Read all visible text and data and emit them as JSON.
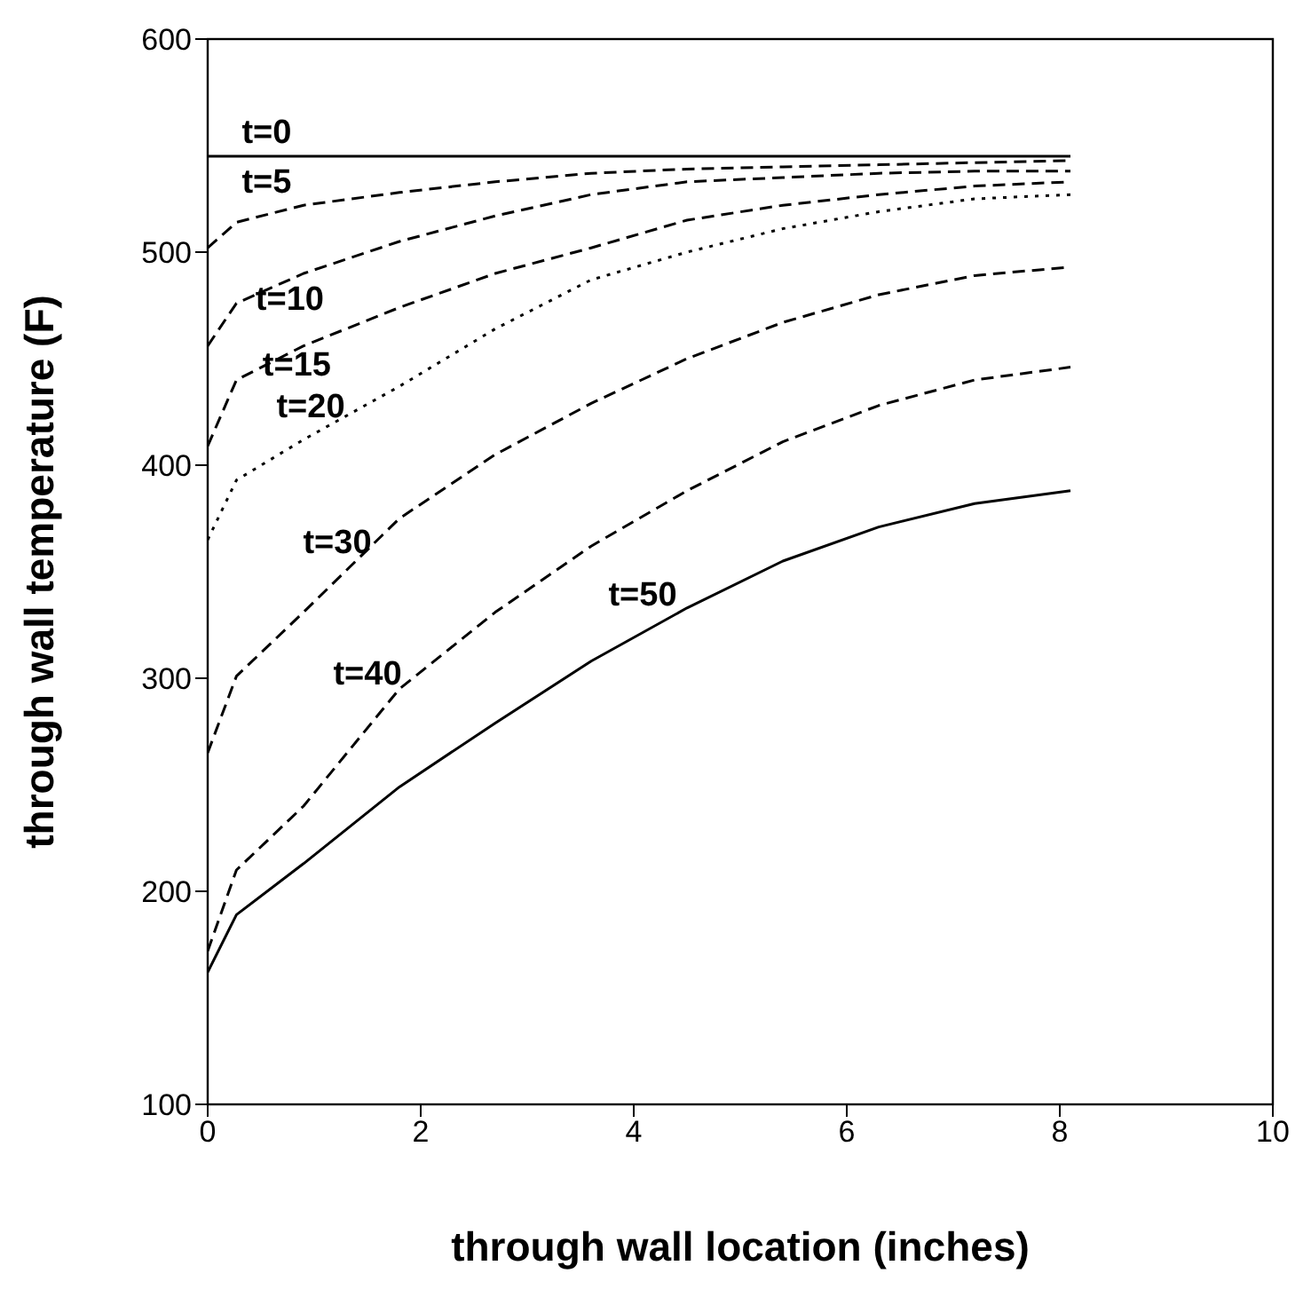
{
  "chart_data": {
    "type": "line",
    "xlabel": "through wall location (inches)",
    "ylabel": "through wall temperature (F)",
    "x": [
      0,
      0.27,
      0.9,
      1.8,
      2.7,
      3.6,
      4.5,
      5.4,
      6.3,
      7.2,
      8.1
    ],
    "xlim": [
      0,
      10
    ],
    "xticks": [
      0,
      2,
      4,
      6,
      8,
      10
    ],
    "ylim": [
      100,
      600
    ],
    "yticks": [
      100,
      200,
      300,
      400,
      500,
      600
    ],
    "grid": false,
    "marker": "none",
    "series": [
      {
        "name": "t=0",
        "color": "#000000",
        "line_style": "solid",
        "values": [
          545,
          545,
          545,
          545,
          545,
          545,
          545,
          545,
          545,
          545,
          545
        ]
      },
      {
        "name": "t=5",
        "color": "#000000",
        "line_style": "dashed",
        "values": [
          502,
          514,
          522,
          528,
          533,
          537,
          539,
          540,
          541,
          542,
          543
        ]
      },
      {
        "name": "t=10",
        "color": "#000000",
        "line_style": "dashed",
        "values": [
          456,
          476,
          490,
          505,
          517,
          527,
          533,
          535,
          537,
          538,
          538
        ]
      },
      {
        "name": "t=15",
        "color": "#000000",
        "line_style": "dashed",
        "values": [
          409,
          440,
          456,
          474,
          490,
          502,
          515,
          522,
          527,
          531,
          533
        ]
      },
      {
        "name": "t=20",
        "color": "#000000",
        "line_style": "dotted",
        "values": [
          365,
          393,
          412,
          437,
          464,
          487,
          500,
          511,
          519,
          525,
          527
        ]
      },
      {
        "name": "t=30",
        "color": "#000000",
        "line_style": "dashed",
        "values": [
          265,
          301,
          331,
          375,
          405,
          429,
          450,
          467,
          480,
          489,
          493
        ]
      },
      {
        "name": "t=40",
        "color": "#000000",
        "line_style": "dashed",
        "values": [
          172,
          210,
          240,
          295,
          331,
          362,
          388,
          411,
          428,
          440,
          446
        ]
      },
      {
        "name": "t=50",
        "color": "#000000",
        "line_style": "solid",
        "values": [
          162,
          189,
          213,
          249,
          279,
          308,
          333,
          355,
          371,
          382,
          388
        ]
      }
    ]
  }
}
